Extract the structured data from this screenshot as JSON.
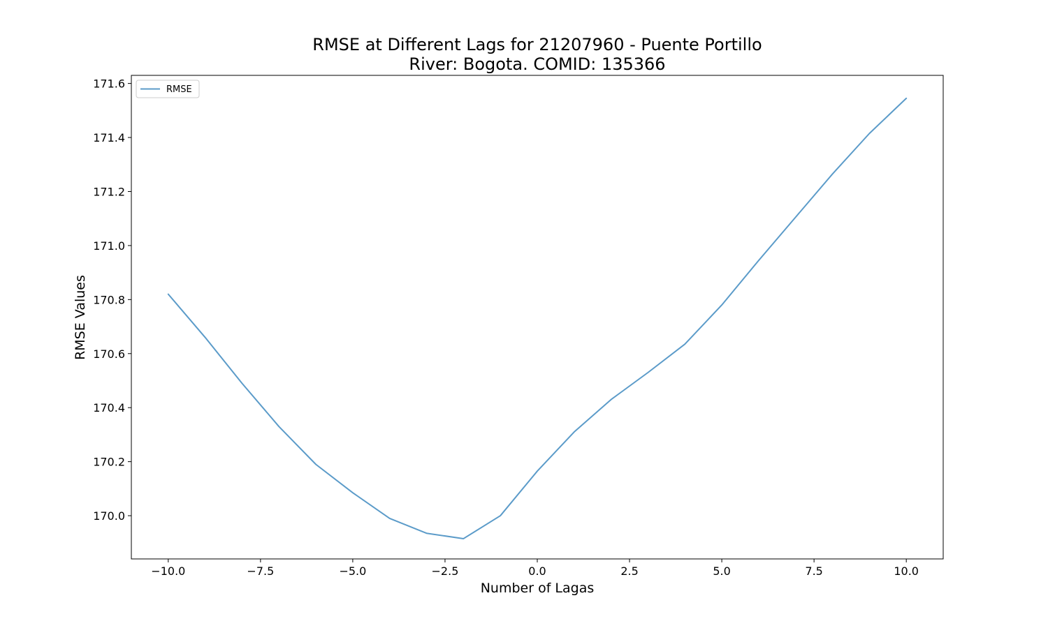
{
  "chart_data": {
    "type": "line",
    "title": "RMSE at Different Lags for 21207960 - Puente Portillo",
    "subtitle": "River: Bogota. COMID: 135366",
    "xlabel": "Number of Lagas",
    "ylabel": "RMSE Values",
    "xlim": [
      -11,
      11
    ],
    "ylim": [
      169.84,
      171.63
    ],
    "x_ticks": [
      -10.0,
      -7.5,
      -5.0,
      -2.5,
      0.0,
      2.5,
      5.0,
      7.5,
      10.0
    ],
    "x_tick_labels": [
      "−10.0",
      "−7.5",
      "−5.0",
      "−2.5",
      "0.0",
      "2.5",
      "5.0",
      "7.5",
      "10.0"
    ],
    "y_ticks": [
      170.0,
      170.2,
      170.4,
      170.6,
      170.8,
      171.0,
      171.2,
      171.4,
      171.6
    ],
    "y_tick_labels": [
      "170.0",
      "170.2",
      "170.4",
      "170.6",
      "170.8",
      "171.0",
      "171.2",
      "171.4",
      "171.6"
    ],
    "grid": false,
    "legend_position": "top-left",
    "series": [
      {
        "name": "RMSE",
        "color": "#5b9bc9",
        "x": [
          -10,
          -9,
          -8,
          -7,
          -6,
          -5,
          -4,
          -3,
          -2,
          -1,
          0,
          1,
          2,
          3,
          4,
          5,
          6,
          7,
          8,
          9,
          10
        ],
        "values": [
          170.82,
          170.66,
          170.49,
          170.33,
          170.19,
          170.085,
          169.99,
          169.935,
          169.915,
          170.0,
          170.165,
          170.31,
          170.43,
          170.53,
          170.635,
          170.78,
          170.945,
          171.105,
          171.265,
          171.415,
          171.545
        ]
      }
    ]
  }
}
